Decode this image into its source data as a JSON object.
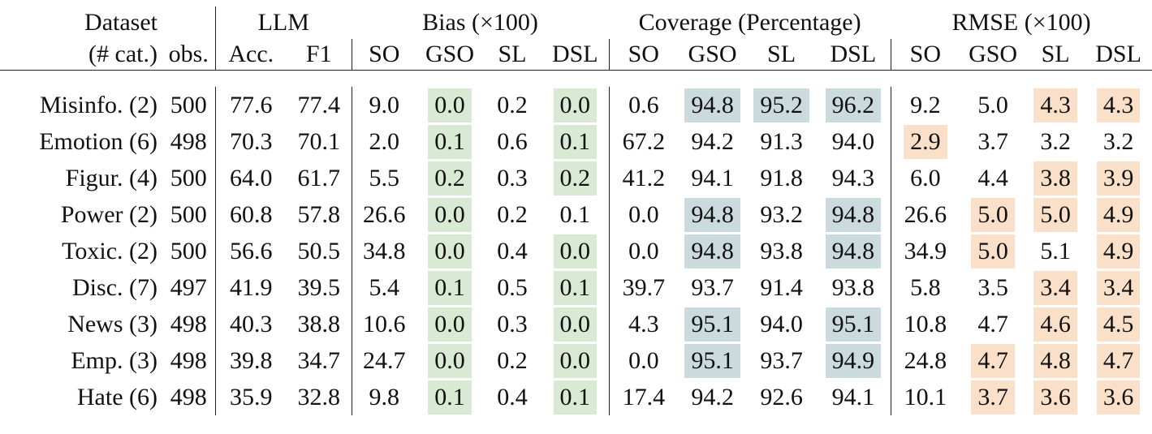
{
  "header": {
    "dataset": "Dataset",
    "cat": "(# cat.)",
    "obs": "obs.",
    "groups": [
      "LLM",
      "Bias (×100)",
      "Coverage (Percentage)",
      "RMSE (×100)"
    ],
    "llm_cols": [
      "Acc.",
      "F1"
    ],
    "method_cols": [
      [
        "SO",
        "GSO",
        "SL",
        "DSL"
      ],
      [
        "SO",
        "GSO",
        "SL",
        "DSL"
      ],
      [
        "SO",
        "GSO",
        "SL",
        "DSL"
      ]
    ]
  },
  "highlight_colors": {
    "bias": "#d9e9d3",
    "coverage": "#cbdadd",
    "rmse": "#fae0c8"
  },
  "table": {
    "rows": [
      [
        "Misinfo. (2)",
        "500",
        "77.6",
        "77.4",
        "9.0",
        "0.0",
        "0.2",
        "0.0",
        "0.6",
        "94.8",
        "95.2",
        "96.2",
        "9.2",
        "5.0",
        "4.3",
        "4.3"
      ],
      [
        "Emotion (6)",
        "498",
        "70.3",
        "70.1",
        "2.0",
        "0.1",
        "0.6",
        "0.1",
        "67.2",
        "94.2",
        "91.3",
        "94.0",
        "2.9",
        "3.7",
        "3.2",
        "3.2"
      ],
      [
        "Figur. (4)",
        "500",
        "64.0",
        "61.7",
        "5.5",
        "0.2",
        "0.3",
        "0.2",
        "41.2",
        "94.1",
        "91.8",
        "94.3",
        "6.0",
        "4.4",
        "3.8",
        "3.9"
      ],
      [
        "Power (2)",
        "500",
        "60.8",
        "57.8",
        "26.6",
        "0.0",
        "0.2",
        "0.1",
        "0.0",
        "94.8",
        "93.2",
        "94.8",
        "26.6",
        "5.0",
        "5.0",
        "4.9"
      ],
      [
        "Toxic. (2)",
        "500",
        "56.6",
        "50.5",
        "34.8",
        "0.0",
        "0.4",
        "0.0",
        "0.0",
        "94.8",
        "93.8",
        "94.8",
        "34.9",
        "5.0",
        "5.1",
        "4.9"
      ],
      [
        "Disc. (7)",
        "497",
        "41.9",
        "39.5",
        "5.4",
        "0.1",
        "0.5",
        "0.1",
        "39.7",
        "93.7",
        "91.4",
        "93.8",
        "5.8",
        "3.5",
        "3.4",
        "3.4"
      ],
      [
        "News (3)",
        "498",
        "40.3",
        "38.8",
        "10.6",
        "0.0",
        "0.3",
        "0.0",
        "4.3",
        "95.1",
        "94.0",
        "95.1",
        "10.8",
        "4.7",
        "4.6",
        "4.5"
      ],
      [
        "Emp. (3)",
        "498",
        "39.8",
        "34.7",
        "24.7",
        "0.0",
        "0.2",
        "0.0",
        "0.0",
        "95.1",
        "93.7",
        "94.9",
        "24.8",
        "4.7",
        "4.8",
        "4.7"
      ],
      [
        "Hate (6)",
        "498",
        "35.9",
        "32.8",
        "9.8",
        "0.1",
        "0.4",
        "0.1",
        "17.4",
        "94.2",
        "92.6",
        "94.1",
        "10.1",
        "3.7",
        "3.6",
        "3.6"
      ]
    ],
    "highlighted": [
      [
        5,
        7,
        9,
        10,
        11,
        14,
        15
      ],
      [
        5,
        7,
        12
      ],
      [
        5,
        7,
        14,
        15
      ],
      [
        5,
        9,
        11,
        13,
        14,
        15
      ],
      [
        5,
        7,
        9,
        11,
        13,
        15
      ],
      [
        5,
        7,
        14,
        15
      ],
      [
        5,
        7,
        9,
        11,
        14,
        15
      ],
      [
        5,
        7,
        9,
        11,
        13,
        14,
        15
      ],
      [
        5,
        7,
        13,
        14,
        15
      ]
    ]
  }
}
